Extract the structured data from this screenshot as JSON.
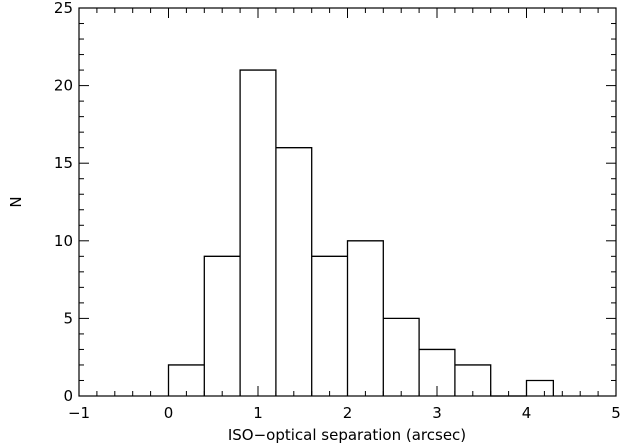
{
  "chart_data": {
    "type": "bar",
    "style": "step-histogram",
    "xlabel": "ISO−optical separation (arcsec)",
    "ylabel": "N",
    "xlim": [
      -1,
      5
    ],
    "ylim": [
      0,
      25
    ],
    "x_ticks": [
      -1,
      0,
      1,
      2,
      3,
      4,
      5
    ],
    "x_tick_labels": [
      "−1",
      "0",
      "1",
      "2",
      "3",
      "4",
      "5"
    ],
    "y_ticks": [
      0,
      5,
      10,
      15,
      20,
      25
    ],
    "y_tick_labels": [
      "0",
      "5",
      "10",
      "15",
      "20",
      "25"
    ],
    "x_minor_step": 0.2,
    "y_minor_step": 1,
    "grid": false,
    "bins": [
      {
        "x0": 0.0,
        "x1": 0.4,
        "count": 2
      },
      {
        "x0": 0.4,
        "x1": 0.8,
        "count": 9
      },
      {
        "x0": 0.8,
        "x1": 1.2,
        "count": 21
      },
      {
        "x0": 1.2,
        "x1": 1.6,
        "count": 16
      },
      {
        "x0": 1.6,
        "x1": 2.0,
        "count": 9
      },
      {
        "x0": 2.0,
        "x1": 2.4,
        "count": 10
      },
      {
        "x0": 2.4,
        "x1": 2.8,
        "count": 5
      },
      {
        "x0": 2.8,
        "x1": 3.2,
        "count": 3
      },
      {
        "x0": 3.2,
        "x1": 3.6,
        "count": 2
      },
      {
        "x0": 3.6,
        "x1": 4.0,
        "count": 0
      },
      {
        "x0": 4.0,
        "x1": 4.3,
        "count": 1
      }
    ]
  }
}
